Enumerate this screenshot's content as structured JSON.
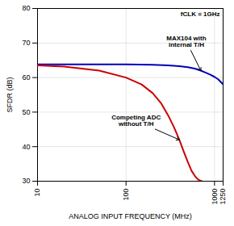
{
  "chart_data": {
    "type": "line",
    "xlabel": "ANALOG INPUT FREQUENCY (MHz)",
    "ylabel": "SFDR (dB)",
    "log": "x",
    "xlim": [
      10,
      1250
    ],
    "ylim": [
      30,
      80
    ],
    "xticks": [
      10,
      100,
      1000,
      1250
    ],
    "yticks": [
      30,
      40,
      50,
      60,
      70,
      80
    ],
    "grid": true,
    "series": [
      {
        "color": "#0000bb",
        "x": [
          10,
          20,
          50,
          100,
          200,
          300,
          400,
          500,
          600,
          700,
          800,
          900,
          1000,
          1100,
          1200,
          1250
        ],
        "values": [
          63.8,
          63.8,
          63.8,
          63.8,
          63.7,
          63.5,
          63.3,
          63.0,
          62.6,
          62.0,
          61.4,
          60.8,
          60.2,
          59.5,
          58.5,
          58.0
        ]
      },
      {
        "color": "#cc0000",
        "x": [
          10,
          20,
          50,
          100,
          150,
          200,
          250,
          300,
          350,
          400,
          450,
          500,
          550,
          600,
          650,
          700,
          720
        ],
        "values": [
          63.5,
          63.2,
          62.0,
          60.0,
          58.0,
          55.5,
          52.5,
          49.0,
          45.5,
          42.0,
          38.5,
          35.5,
          33.0,
          31.5,
          30.5,
          30.1,
          30.0
        ]
      }
    ],
    "annotations": [
      {
        "text": "fCLK = 1GHz"
      },
      {
        "text": "MAX104 with\ninternal T/H",
        "x": 480,
        "y": 70.5,
        "arrow_x": 700,
        "arrow_y": 62.0
      },
      {
        "text": "Competing ADC\nwithout T/H",
        "x": 130,
        "y": 47.5,
        "arrow_x": 400,
        "arrow_y": 42.0
      }
    ]
  }
}
